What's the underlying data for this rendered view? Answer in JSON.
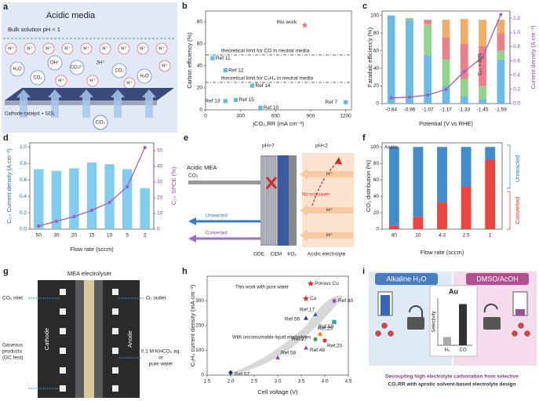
{
  "chart_data": [
    {
      "label": "b",
      "type": "scatter",
      "xlabel": "jCO₂,RR (mA cm⁻²)",
      "ylabel": "Carbon efficiency (%)",
      "xlim": [
        0,
        1250
      ],
      "xticks": [
        0,
        300,
        600,
        900,
        1200
      ],
      "ylim": [
        0,
        90
      ],
      "yticks": [
        0,
        20,
        40,
        60,
        80
      ],
      "series": [
        {
          "marker": "star",
          "color": "#e87a7a",
          "x": [
            850
          ],
          "values": [
            77
          ],
          "labels": [
            "this work"
          ]
        },
        {
          "marker": "square",
          "color": "#5bbde6",
          "x": [
            60,
            170,
            400,
            170,
            260,
            470,
            1200
          ],
          "values": [
            47,
            36,
            22,
            8,
            9,
            2,
            7
          ],
          "labels": [
            "Ref 11",
            "Ref 12",
            "Ref 14",
            "Ref 13",
            "Ref 15",
            "Ref 10",
            "Ref 7"
          ]
        }
      ],
      "reference_lines": [
        {
          "value": 50,
          "label": "theoretical limit for CO in neutral media"
        },
        {
          "value": 25,
          "label": "theoretical limit for C₂H₄ in neutral media"
        }
      ]
    },
    {
      "label": "c",
      "type": "bar",
      "stacked": true,
      "xlabel": "Potential (V vs RHE)",
      "ylabel": "Faradaic efficiency (%)",
      "y2label": "Current density (A cm⁻²)",
      "categories": [
        "-0.84",
        "-0.96",
        "-1.07",
        "-1.17",
        "-1.33",
        "-1.45",
        "-1.59"
      ],
      "ylim": [
        0,
        105
      ],
      "yticks": [
        0,
        20,
        40,
        60,
        80,
        100
      ],
      "y2lim": [
        0,
        1.3
      ],
      "y2ticks": [
        {
          "value": 0,
          "label": "0.0"
        },
        0.2,
        0.4,
        0.6,
        0.8,
        {
          "value": 1,
          "label": "1.0"
        },
        1.2
      ],
      "series": [
        {
          "color": "#5ab4e5",
          "values": [
            100,
            95,
            55,
            20,
            8,
            5,
            50
          ]
        },
        {
          "color": "#86cf7e",
          "values": [
            0,
            2,
            35,
            30,
            20,
            15,
            10
          ]
        },
        {
          "color": "#e8727c",
          "values": [
            0,
            0,
            5,
            25,
            40,
            45,
            20
          ]
        },
        {
          "color": "#f0a456",
          "values": [
            0,
            0,
            0,
            20,
            28,
            30,
            15
          ]
        },
        {
          "type": "line",
          "axis": "y2",
          "color": "#a05cc0",
          "values": [
            0.08,
            0.09,
            0.12,
            0.2,
            0.45,
            0.65,
            1.25
          ]
        }
      ],
      "annotation": "C₂₊ > 80%"
    },
    {
      "label": "d",
      "type": "bar",
      "xlabel": "Flow rate (sccm)",
      "ylabel": "C₂₊ Current density (A cm⁻²)",
      "y2label": "C₂₊ SPCE (%)",
      "categories": [
        "50",
        "30",
        "20",
        "15",
        "10",
        "5",
        "2"
      ],
      "ylim": [
        0,
        1.05
      ],
      "yticks": [
        {
          "value": 0,
          "label": "0.0"
        },
        0.2,
        0.4,
        0.6,
        0.8,
        {
          "value": 1,
          "label": "1.0"
        }
      ],
      "y2lim": [
        0,
        55
      ],
      "y2ticks": [
        0,
        10,
        20,
        30,
        40,
        50
      ],
      "series": [
        {
          "color": "#74c6ec",
          "values": [
            0.73,
            0.71,
            0.74,
            0.81,
            0.79,
            0.73,
            0.5
          ]
        },
        {
          "type": "line",
          "axis": "y2",
          "color": "#a05cc0",
          "values": [
            2,
            5,
            8,
            12,
            17,
            27,
            52
          ]
        }
      ]
    },
    {
      "label": "f",
      "type": "bar",
      "stacked": true,
      "xlabel": "Flow rate (sccm)",
      "ylabel": "CO₂ distribution (%)",
      "categories": [
        "40",
        "10",
        "4.3",
        "2.5",
        "1"
      ],
      "ylim": [
        0,
        105
      ],
      "yticks": [
        0,
        20,
        40,
        60,
        80,
        100
      ],
      "series": [
        {
          "name": "Converted",
          "color": "#e8322a",
          "values": [
            4,
            15,
            33,
            52,
            85
          ]
        },
        {
          "name": "Unreacted",
          "color": "#2e7fc7",
          "values": [
            96,
            85,
            67,
            48,
            15
          ]
        }
      ],
      "annotation": "Acidic"
    },
    {
      "label": "h",
      "type": "scatter",
      "xlabel": "Cell voltage (V)",
      "ylabel": "C₂H₄ current density (mA cm⁻²)",
      "xlim": [
        1.5,
        4.5
      ],
      "xticks": [
        1.5,
        {
          "value": 2,
          "label": "2.0"
        },
        2.5,
        {
          "value": 3,
          "label": "3.0"
        },
        3.5,
        {
          "value": 4,
          "label": "4.0"
        },
        4.5
      ],
      "ylim": [
        0,
        400
      ],
      "yticks": [
        0,
        100,
        200,
        300
      ],
      "series": [
        {
          "x": [
            3.7,
            3.6,
            4.2,
            3.8,
            3.6,
            4.2,
            3.9,
            3.8,
            4.0,
            3.6,
            3.0,
            2.0
          ],
          "values": [
            370,
            310,
            300,
            245,
            230,
            215,
            165,
            145,
            140,
            110,
            70,
            10
          ],
          "labels": [
            "Porous Cu",
            "Cu",
            "Ref.60",
            "Ref.17",
            "Ref.56",
            "Ref.59",
            "Ref.25",
            "Ref.27",
            "Ref.20",
            "Ref.48",
            "Ref.58",
            "Ref.57"
          ],
          "markers": [
            "star",
            "star",
            "circle",
            "triangle",
            "triangle",
            "square",
            "circle",
            "circle",
            "circle",
            "triangle",
            "triangle",
            "diamond"
          ],
          "colors": [
            "#e03030",
            "#e03030",
            "#9a5ab0",
            "#3a5bd0",
            "#23307a",
            "#2aa0a0",
            "#f08a2a",
            "#3aa048",
            "#d83a3a",
            "#8a4aa8",
            "#8a4aa8",
            "#22306a"
          ]
        }
      ],
      "annotations": [
        "This work with pure water",
        "With unconsumable liquid electrolytes"
      ]
    }
  ],
  "diagrams": {
    "a": {
      "label": "a",
      "title": "Acidic media",
      "bulk": "Bulk solution pH < 1",
      "cathode": "Cathode catalyst + GDL",
      "gas": "CO₂",
      "species": [
        "H⁺",
        "H⁺",
        "H⁺",
        "H⁺",
        "H⁺",
        "H⁺",
        "H⁺",
        "H⁺",
        "H⁺",
        "H₂O",
        "CO₂",
        "OH⁻",
        "CO₃²⁻",
        "2H⁺",
        "CO₂",
        "H₂O",
        "H⁺",
        "H⁺",
        "H⁺",
        "H⁺"
      ]
    },
    "e": {
      "label": "e",
      "title": "Acidic MEA",
      "ph_left": "pH>7",
      "ph_right": "pH<2",
      "feed": "CO₂",
      "crossover": "No crossover",
      "unreacted": "Unreacted",
      "converted": "Converted",
      "protons": [
        "H⁺",
        "H⁺",
        "H⁺"
      ],
      "layers": [
        "GDE",
        "CEM",
        "IrO₂",
        "Acidic electrolyte"
      ]
    },
    "g": {
      "label": "g",
      "title": "MEA electrolyser",
      "inlet": "CO₂ inlet",
      "outlet": "O₂ outlet",
      "cathode": "Cathode",
      "anode": "Anode",
      "products": [
        "Gaseous",
        "products",
        "(GC test)"
      ],
      "electrolyte": [
        "0.1 M KHCO₃ aq.",
        "or",
        "pure water"
      ]
    },
    "i": {
      "label": "i",
      "left": "Alkaline H₂O",
      "right": "DMSO/AcOH",
      "catalyst": "Au",
      "selectivity": {
        "title": "Selectivity",
        "categories": [
          "H₂",
          "CO"
        ],
        "values": [
          15,
          75
        ]
      },
      "caption": [
        "Decoupling high electrolyte carbonation from selective",
        "CO₂RR with aprotic solvent-based electrolyte design"
      ]
    }
  }
}
